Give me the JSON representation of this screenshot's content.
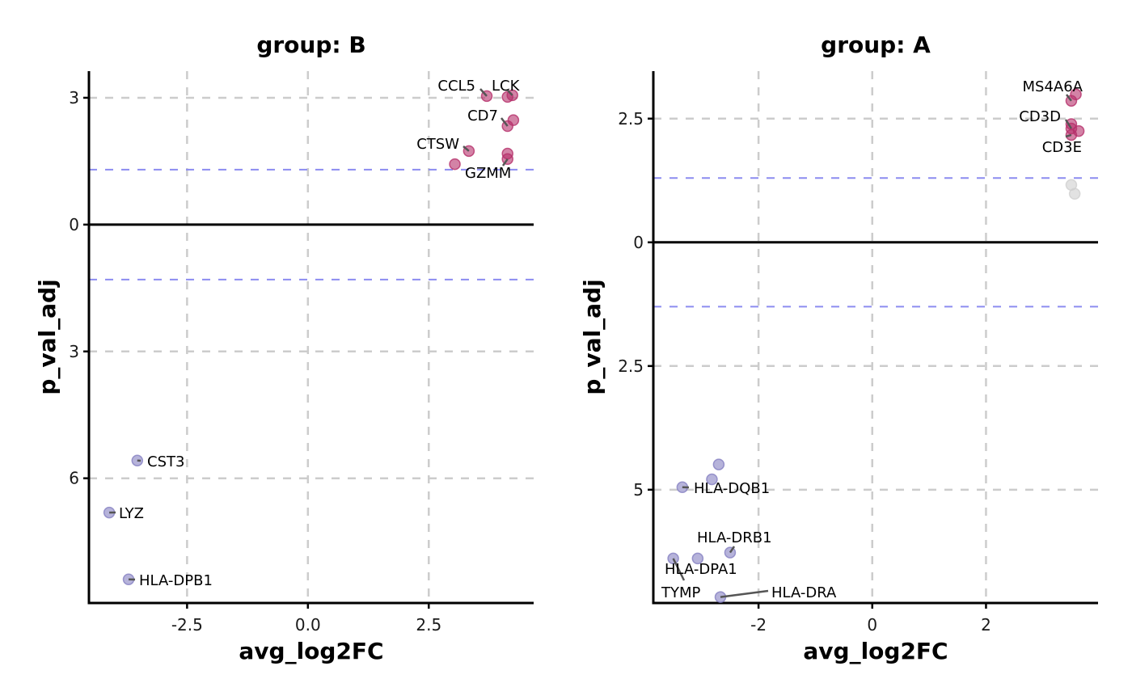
{
  "chart_data": [
    {
      "type": "scatter",
      "title": "group: B",
      "xlabel": "avg_log2FC",
      "ylabel": "p_val_adj",
      "xlim": [
        -4.53,
        4.67
      ],
      "ylim": [
        -8.95,
        3.63
      ],
      "xticks": [
        {
          "value": -2.5,
          "label": "-2.5"
        },
        {
          "value": 0,
          "label": "0.0"
        },
        {
          "value": 2.5,
          "label": "2.5"
        }
      ],
      "yticks": [
        {
          "value": 3,
          "label": "3"
        },
        {
          "value": 0,
          "label": "0"
        },
        {
          "value": -3,
          "label": "3"
        },
        {
          "value": -6,
          "label": "6"
        }
      ],
      "grid": true,
      "threshold_lines": [
        1.3,
        -1.3
      ],
      "points": [
        {
          "x": 3.7,
          "y": 3.04,
          "label": "CCL5",
          "group": "up"
        },
        {
          "x": 4.13,
          "y": 3.02,
          "label": "",
          "group": "up"
        },
        {
          "x": 4.23,
          "y": 3.06,
          "label": "LCK",
          "group": "up"
        },
        {
          "x": 4.25,
          "y": 2.47,
          "label": "",
          "group": "up"
        },
        {
          "x": 4.13,
          "y": 2.33,
          "label": "CD7",
          "group": "up"
        },
        {
          "x": 3.33,
          "y": 1.74,
          "label": "CTSW",
          "group": "up"
        },
        {
          "x": 4.13,
          "y": 1.68,
          "label": "",
          "group": "up"
        },
        {
          "x": 4.13,
          "y": 1.55,
          "label": "GZMM",
          "group": "up"
        },
        {
          "x": 3.04,
          "y": 1.43,
          "label": "",
          "group": "up"
        },
        {
          "x": -3.53,
          "y": -5.58,
          "label": "CST3",
          "group": "down"
        },
        {
          "x": -4.11,
          "y": -6.81,
          "label": "LYZ",
          "group": "down"
        },
        {
          "x": -3.71,
          "y": -8.39,
          "label": "HLA-DPB1",
          "group": "down"
        }
      ]
    },
    {
      "type": "scatter",
      "title": "group: A",
      "xlabel": "avg_log2FC",
      "ylabel": "p_val_adj",
      "xlim": [
        -3.85,
        3.97
      ],
      "ylim": [
        -7.29,
        3.46
      ],
      "xticks": [
        {
          "value": -2,
          "label": "-2"
        },
        {
          "value": 0,
          "label": "0"
        },
        {
          "value": 2,
          "label": "2"
        }
      ],
      "yticks": [
        {
          "value": 2.5,
          "label": "2.5"
        },
        {
          "value": 0,
          "label": "0"
        },
        {
          "value": -2.5,
          "label": "2.5"
        },
        {
          "value": -5,
          "label": "5"
        }
      ],
      "grid": true,
      "threshold_lines": [
        1.3,
        -1.3
      ],
      "points": [
        {
          "x": 3.58,
          "y": 2.99,
          "label": "",
          "group": "up"
        },
        {
          "x": 3.5,
          "y": 2.86,
          "label": "MS4A6A",
          "group": "up"
        },
        {
          "x": 3.5,
          "y": 2.39,
          "label": "",
          "group": "up"
        },
        {
          "x": 3.5,
          "y": 2.3,
          "label": "CD3D",
          "group": "up"
        },
        {
          "x": 3.63,
          "y": 2.25,
          "label": "",
          "group": "up"
        },
        {
          "x": 3.5,
          "y": 2.17,
          "label": "CD3E",
          "group": "up"
        },
        {
          "x": 3.5,
          "y": 1.16,
          "label": "",
          "group": "ns"
        },
        {
          "x": 3.56,
          "y": 0.98,
          "label": "",
          "group": "ns"
        },
        {
          "x": -2.7,
          "y": -4.49,
          "label": "",
          "group": "down"
        },
        {
          "x": -2.82,
          "y": -4.79,
          "label": "",
          "group": "down"
        },
        {
          "x": -3.34,
          "y": -4.95,
          "label": "HLA-DQB1",
          "group": "down"
        },
        {
          "x": -2.5,
          "y": -6.27,
          "label": "HLA-DRB1",
          "group": "down"
        },
        {
          "x": -3.5,
          "y": -6.39,
          "label": "TYMP",
          "group": "down"
        },
        {
          "x": -3.07,
          "y": -6.39,
          "label": "HLA-DPA1",
          "group": "down"
        },
        {
          "x": -2.67,
          "y": -7.17,
          "label": "HLA-DRA",
          "group": "down"
        }
      ]
    }
  ],
  "colors": {
    "up": "#b5306a",
    "down": "#8580c2",
    "ns": "#cfcfcf",
    "threshold": "#8c8cf0",
    "grid": "#cccccc"
  }
}
